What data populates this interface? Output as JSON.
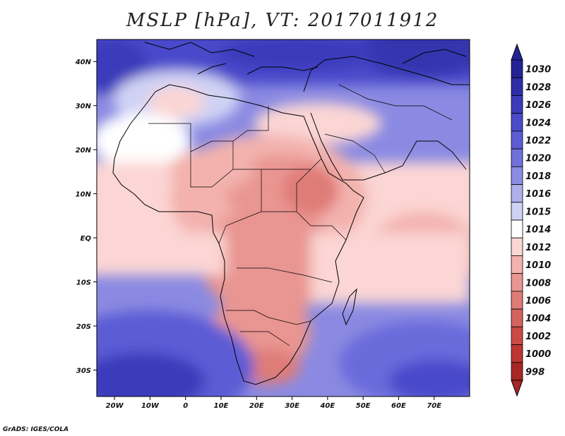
{
  "title": "MSLP [hPa], VT: 2017011912",
  "credit": "GrADS: IGES/COLA",
  "map": {
    "lon_range": [
      -25,
      80
    ],
    "lat_range": [
      -36,
      45
    ],
    "lon_ticks": [
      {
        "value": -20,
        "label": "20W"
      },
      {
        "value": -10,
        "label": "10W"
      },
      {
        "value": 0,
        "label": "0"
      },
      {
        "value": 10,
        "label": "10E"
      },
      {
        "value": 20,
        "label": "20E"
      },
      {
        "value": 30,
        "label": "30E"
      },
      {
        "value": 40,
        "label": "40E"
      },
      {
        "value": 50,
        "label": "50E"
      },
      {
        "value": 60,
        "label": "60E"
      },
      {
        "value": 70,
        "label": "70E"
      }
    ],
    "lat_ticks": [
      {
        "value": 40,
        "label": "40N"
      },
      {
        "value": 30,
        "label": "30N"
      },
      {
        "value": 20,
        "label": "20N"
      },
      {
        "value": 10,
        "label": "10N"
      },
      {
        "value": 0,
        "label": "EQ"
      },
      {
        "value": -10,
        "label": "10S"
      },
      {
        "value": -20,
        "label": "20S"
      },
      {
        "value": -30,
        "label": "30S"
      }
    ]
  },
  "colorbar": {
    "labels": [
      "1030",
      "1028",
      "1026",
      "1024",
      "1022",
      "1020",
      "1018",
      "1016",
      "1015",
      "1014",
      "1012",
      "1010",
      "1008",
      "1006",
      "1004",
      "1002",
      "1000",
      "998"
    ],
    "colors": [
      "#232396",
      "#2d2da8",
      "#3b3bbb",
      "#4a4acb",
      "#5c5cd5",
      "#7070dd",
      "#8c8ce4",
      "#aeb0ec",
      "#d0d2f4",
      "#ffffff",
      "#fbd6d4",
      "#f3b2ae",
      "#e99591",
      "#df7b77",
      "#d5625d",
      "#cb4a45",
      "#bf3530",
      "#a82624"
    ]
  }
}
